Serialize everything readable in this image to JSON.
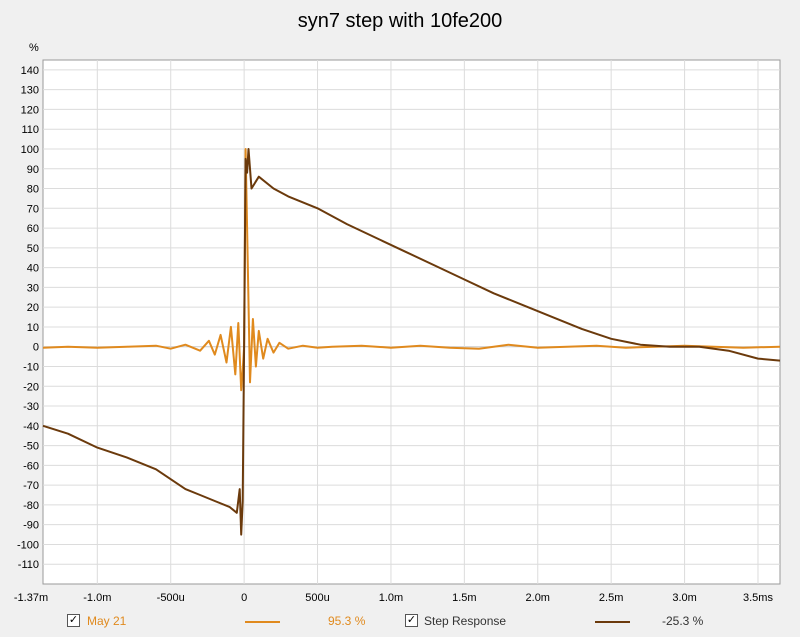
{
  "chart_data": {
    "type": "line",
    "title": "syn7 step with 10fe200",
    "yunit": "%",
    "xlim": [
      -0.00137,
      0.00365
    ],
    "ylim": [
      -120,
      145
    ],
    "grid": true,
    "x_ticks": [
      {
        "value": -0.00137,
        "label": "-1.37m"
      },
      {
        "value": -0.001,
        "label": "-1.0m"
      },
      {
        "value": -0.0005,
        "label": "-500u"
      },
      {
        "value": 0,
        "label": "0"
      },
      {
        "value": 0.0005,
        "label": "500u"
      },
      {
        "value": 0.001,
        "label": "1.0m"
      },
      {
        "value": 0.0015,
        "label": "1.5m"
      },
      {
        "value": 0.002,
        "label": "2.0m"
      },
      {
        "value": 0.0025,
        "label": "2.5m"
      },
      {
        "value": 0.003,
        "label": "3.0m"
      },
      {
        "value": 0.0035,
        "label": "3.5ms"
      }
    ],
    "y_ticks": [
      140,
      130,
      120,
      110,
      100,
      90,
      80,
      70,
      60,
      50,
      40,
      30,
      20,
      10,
      0,
      -10,
      -20,
      -30,
      -40,
      -50,
      -60,
      -70,
      -80,
      -90,
      -100,
      -110
    ],
    "series": [
      {
        "name": "May 21",
        "color": "#e08a1e",
        "legend_value": "95.3 %",
        "x": [
          -0.00137,
          -0.0012,
          -0.001,
          -0.0008,
          -0.0006,
          -0.0005,
          -0.0004,
          -0.0003,
          -0.00024,
          -0.0002,
          -0.00016,
          -0.00012,
          -9e-05,
          -6e-05,
          -4e-05,
          -2e-05,
          -1e-05,
          0,
          1e-05,
          2e-05,
          4e-05,
          6e-05,
          8e-05,
          0.0001,
          0.00013,
          0.00016,
          0.0002,
          0.00024,
          0.0003,
          0.0004,
          0.0005,
          0.0006,
          0.0008,
          0.001,
          0.0012,
          0.0014,
          0.0016,
          0.0018,
          0.002,
          0.0022,
          0.0024,
          0.0026,
          0.0028,
          0.003,
          0.0032,
          0.0034,
          0.00365
        ],
        "y": [
          -0.5,
          0,
          -0.5,
          0,
          0.5,
          -1,
          1,
          -2,
          3,
          -4,
          6,
          -8,
          10,
          -14,
          12,
          -22,
          -12,
          0,
          100,
          60,
          -18,
          14,
          -10,
          8,
          -6,
          4,
          -3,
          2,
          -1,
          0.5,
          -0.5,
          0,
          0.5,
          -0.5,
          0.5,
          -0.5,
          -1,
          1,
          -0.5,
          0,
          0.5,
          -0.5,
          0,
          0.5,
          0,
          -0.5,
          0
        ]
      },
      {
        "name": "Step Response",
        "color": "#6b3a0c",
        "legend_value": "-25.3 %",
        "x": [
          -0.00137,
          -0.0012,
          -0.001,
          -0.0008,
          -0.0006,
          -0.0004,
          -0.0003,
          -0.0002,
          -0.0001,
          -5e-05,
          -3e-05,
          -2e-05,
          -1e-05,
          0,
          1e-05,
          2e-05,
          3e-05,
          5e-05,
          0.0001,
          0.0002,
          0.0003,
          0.0005,
          0.0007,
          0.0009,
          0.0011,
          0.0013,
          0.0015,
          0.0017,
          0.0019,
          0.0021,
          0.0023,
          0.0025,
          0.0027,
          0.0029,
          0.003,
          0.0031,
          0.0033,
          0.0035,
          0.00365
        ],
        "y": [
          -40,
          -44,
          -51,
          -56,
          -62,
          -72,
          -75,
          -78,
          -81,
          -84,
          -72,
          -95,
          -78,
          0,
          95,
          88,
          100,
          80,
          86,
          80,
          76,
          70,
          62,
          55,
          48,
          41,
          34,
          27,
          21,
          15,
          9,
          4,
          1,
          0,
          0,
          0,
          -2,
          -6,
          -7
        ]
      }
    ]
  },
  "legend": {
    "items": [
      {
        "label": "May 21",
        "value": "95.3 %",
        "checked": "✓"
      },
      {
        "label": "Step Response",
        "value": "-25.3 %",
        "checked": "✓"
      }
    ]
  }
}
